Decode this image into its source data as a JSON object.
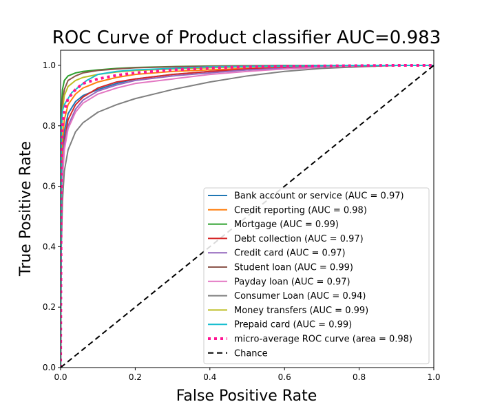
{
  "chart_data": {
    "type": "line",
    "title": "ROC Curve of Product classifier AUC=0.983",
    "xlabel": "False Positive Rate",
    "ylabel": "True Positive Rate",
    "xlim": [
      0.0,
      1.0
    ],
    "ylim": [
      0.0,
      1.05
    ],
    "xticks": [
      "0.0",
      "0.2",
      "0.4",
      "0.6",
      "0.8",
      "1.0"
    ],
    "yticks": [
      "0.0",
      "0.2",
      "0.4",
      "0.6",
      "0.8",
      "1.0"
    ],
    "grid": false,
    "legend_position": "lower right",
    "series": [
      {
        "name": "Bank account or service (AUC = 0.97)",
        "color": "#1f77b4",
        "style": "solid",
        "x": [
          0,
          0.002,
          0.005,
          0.01,
          0.02,
          0.04,
          0.06,
          0.1,
          0.15,
          0.2,
          0.3,
          0.4,
          0.5,
          0.6,
          0.7,
          0.8,
          0.9,
          1
        ],
        "y": [
          0,
          0.55,
          0.7,
          0.78,
          0.84,
          0.88,
          0.9,
          0.92,
          0.94,
          0.955,
          0.97,
          0.98,
          0.985,
          0.99,
          0.995,
          0.998,
          1,
          1
        ]
      },
      {
        "name": "Credit reporting (AUC = 0.98)",
        "color": "#ff7f0e",
        "style": "solid",
        "x": [
          0,
          0.002,
          0.005,
          0.01,
          0.02,
          0.04,
          0.06,
          0.1,
          0.15,
          0.2,
          0.3,
          0.4,
          0.5,
          0.6,
          0.7,
          0.8,
          0.9,
          1
        ],
        "y": [
          0,
          0.6,
          0.75,
          0.82,
          0.87,
          0.905,
          0.925,
          0.945,
          0.96,
          0.97,
          0.98,
          0.985,
          0.99,
          0.993,
          0.996,
          0.998,
          1,
          1
        ]
      },
      {
        "name": "Mortgage (AUC = 0.99)",
        "color": "#2ca02c",
        "style": "solid",
        "x": [
          0,
          0.002,
          0.005,
          0.01,
          0.02,
          0.04,
          0.06,
          0.1,
          0.15,
          0.2,
          0.3,
          0.4,
          0.5,
          0.6,
          0.8,
          1
        ],
        "y": [
          0,
          0.85,
          0.92,
          0.95,
          0.965,
          0.975,
          0.98,
          0.985,
          0.99,
          0.993,
          0.996,
          0.998,
          0.999,
          1,
          1,
          1
        ]
      },
      {
        "name": "Debt collection (AUC = 0.97)",
        "color": "#d62728",
        "style": "solid",
        "x": [
          0,
          0.002,
          0.005,
          0.01,
          0.02,
          0.04,
          0.06,
          0.1,
          0.15,
          0.2,
          0.3,
          0.4,
          0.5,
          0.6,
          0.7,
          0.8,
          0.9,
          1
        ],
        "y": [
          0,
          0.5,
          0.65,
          0.75,
          0.82,
          0.87,
          0.895,
          0.925,
          0.945,
          0.955,
          0.97,
          0.98,
          0.988,
          0.993,
          0.996,
          0.998,
          1,
          1
        ]
      },
      {
        "name": "Credit card (AUC = 0.97)",
        "color": "#9467bd",
        "style": "solid",
        "x": [
          0,
          0.002,
          0.005,
          0.01,
          0.02,
          0.04,
          0.06,
          0.1,
          0.15,
          0.2,
          0.3,
          0.4,
          0.5,
          0.6,
          0.7,
          0.8,
          0.9,
          1
        ],
        "y": [
          0,
          0.5,
          0.65,
          0.74,
          0.8,
          0.855,
          0.885,
          0.915,
          0.935,
          0.95,
          0.965,
          0.975,
          0.985,
          0.99,
          0.995,
          0.998,
          1,
          1
        ]
      },
      {
        "name": "Student loan (AUC = 0.99)",
        "color": "#8c564b",
        "style": "solid",
        "x": [
          0,
          0.002,
          0.005,
          0.01,
          0.02,
          0.04,
          0.06,
          0.1,
          0.15,
          0.2,
          0.3,
          0.4,
          0.6,
          0.8,
          1
        ],
        "y": [
          0,
          0.8,
          0.88,
          0.92,
          0.95,
          0.965,
          0.975,
          0.983,
          0.988,
          0.992,
          0.995,
          0.997,
          0.999,
          1,
          1
        ]
      },
      {
        "name": "Payday loan (AUC = 0.97)",
        "color": "#e377c2",
        "style": "solid",
        "x": [
          0,
          0.002,
          0.005,
          0.01,
          0.02,
          0.04,
          0.06,
          0.1,
          0.15,
          0.2,
          0.3,
          0.4,
          0.5,
          0.6,
          0.7,
          0.8,
          0.9,
          1
        ],
        "y": [
          0,
          0.45,
          0.62,
          0.72,
          0.79,
          0.845,
          0.875,
          0.905,
          0.925,
          0.94,
          0.955,
          0.97,
          0.98,
          0.988,
          0.993,
          0.997,
          1,
          1
        ]
      },
      {
        "name": "Consumer Loan (AUC = 0.94)",
        "color": "#7f7f7f",
        "style": "solid",
        "x": [
          0,
          0.002,
          0.005,
          0.01,
          0.02,
          0.04,
          0.06,
          0.1,
          0.15,
          0.2,
          0.25,
          0.3,
          0.4,
          0.5,
          0.6,
          0.7,
          0.8,
          0.9,
          1
        ],
        "y": [
          0,
          0.4,
          0.55,
          0.65,
          0.72,
          0.78,
          0.81,
          0.845,
          0.87,
          0.89,
          0.905,
          0.92,
          0.945,
          0.965,
          0.98,
          0.99,
          0.995,
          1,
          1
        ]
      },
      {
        "name": "Money transfers (AUC = 0.99)",
        "color": "#bcbd22",
        "style": "solid",
        "x": [
          0,
          0.002,
          0.005,
          0.01,
          0.02,
          0.04,
          0.06,
          0.1,
          0.15,
          0.2,
          0.3,
          0.4,
          0.5,
          0.6,
          0.8,
          1
        ],
        "y": [
          0,
          0.75,
          0.85,
          0.9,
          0.93,
          0.95,
          0.96,
          0.97,
          0.978,
          0.983,
          0.988,
          0.992,
          0.995,
          0.998,
          1,
          1
        ]
      },
      {
        "name": "Prepaid card (AUC = 0.99)",
        "color": "#17becf",
        "style": "solid",
        "x": [
          0,
          0.002,
          0.005,
          0.01,
          0.02,
          0.03,
          0.05,
          0.07,
          0.1,
          0.15,
          0.2,
          0.3,
          0.4,
          0.6,
          0.8,
          1
        ],
        "y": [
          0,
          0.8,
          0.85,
          0.87,
          0.89,
          0.91,
          0.93,
          0.95,
          0.97,
          0.98,
          0.985,
          0.99,
          0.995,
          0.998,
          1,
          1
        ]
      },
      {
        "name": "micro-average ROC curve (area = 0.98)",
        "color": "#ff1493",
        "style": "dotted",
        "x": [
          0,
          0.002,
          0.005,
          0.01,
          0.02,
          0.04,
          0.06,
          0.1,
          0.15,
          0.2,
          0.3,
          0.4,
          0.5,
          0.6,
          0.7,
          0.8,
          0.9,
          1
        ],
        "y": [
          0,
          0.7,
          0.8,
          0.85,
          0.89,
          0.92,
          0.94,
          0.955,
          0.967,
          0.975,
          0.985,
          0.991,
          0.995,
          0.997,
          0.998,
          0.999,
          1,
          1
        ]
      },
      {
        "name": "Chance",
        "color": "#000000",
        "style": "dashed",
        "x": [
          0,
          1
        ],
        "y": [
          0,
          1
        ]
      }
    ]
  }
}
